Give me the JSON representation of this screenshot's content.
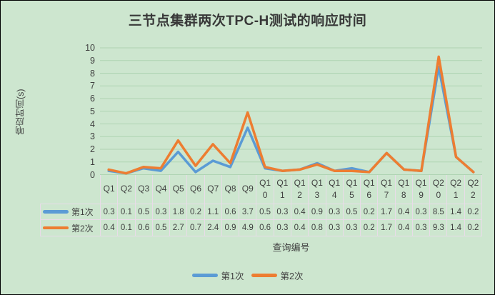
{
  "title": "三节点集群两次TPC-H测试的响应时间",
  "y_axis": {
    "title": "响应时间(s)",
    "ticks": [
      0,
      1,
      2,
      3,
      4,
      5,
      6,
      7,
      8,
      9,
      10
    ]
  },
  "x_axis": {
    "title": "查询编号"
  },
  "colors": {
    "background": "#cde6cf",
    "gridline": "#aed3b2",
    "table_border": "#e8dce8",
    "text": "#3f3f3f",
    "series1": "#5b9bd5",
    "series2": "#ed7d31"
  },
  "legend": {
    "items": [
      {
        "label": "第1次",
        "color": "#5b9bd5"
      },
      {
        "label": "第2次",
        "color": "#ed7d31"
      }
    ]
  },
  "chart_data": {
    "type": "line",
    "title": "三节点集群两次TPC-H测试的响应时间",
    "xlabel": "查询编号",
    "ylabel": "响应时间(s)",
    "ylim": [
      0,
      10
    ],
    "y_tick_step": 1,
    "grid": true,
    "legend_position": "bottom",
    "data_table_shown": true,
    "categories": [
      "Q1",
      "Q2",
      "Q3",
      "Q4",
      "Q5",
      "Q6",
      "Q7",
      "Q8",
      "Q9",
      "Q10",
      "Q11",
      "Q12",
      "Q13",
      "Q14",
      "Q15",
      "Q16",
      "Q17",
      "Q18",
      "Q19",
      "Q20",
      "Q21",
      "Q22"
    ],
    "series": [
      {
        "name": "第1次",
        "color": "#5b9bd5",
        "values": [
          0.3,
          0.1,
          0.5,
          0.3,
          1.8,
          0.2,
          1.1,
          0.6,
          3.7,
          0.5,
          0.3,
          0.4,
          0.9,
          0.3,
          0.5,
          0.2,
          1.7,
          0.4,
          0.3,
          8.5,
          1.4,
          0.2
        ]
      },
      {
        "name": "第2次",
        "color": "#ed7d31",
        "values": [
          0.4,
          0.1,
          0.6,
          0.5,
          2.7,
          0.7,
          2.4,
          0.9,
          4.9,
          0.6,
          0.3,
          0.4,
          0.8,
          0.3,
          0.3,
          0.2,
          1.7,
          0.4,
          0.3,
          9.3,
          1.4,
          0.2
        ]
      }
    ]
  }
}
